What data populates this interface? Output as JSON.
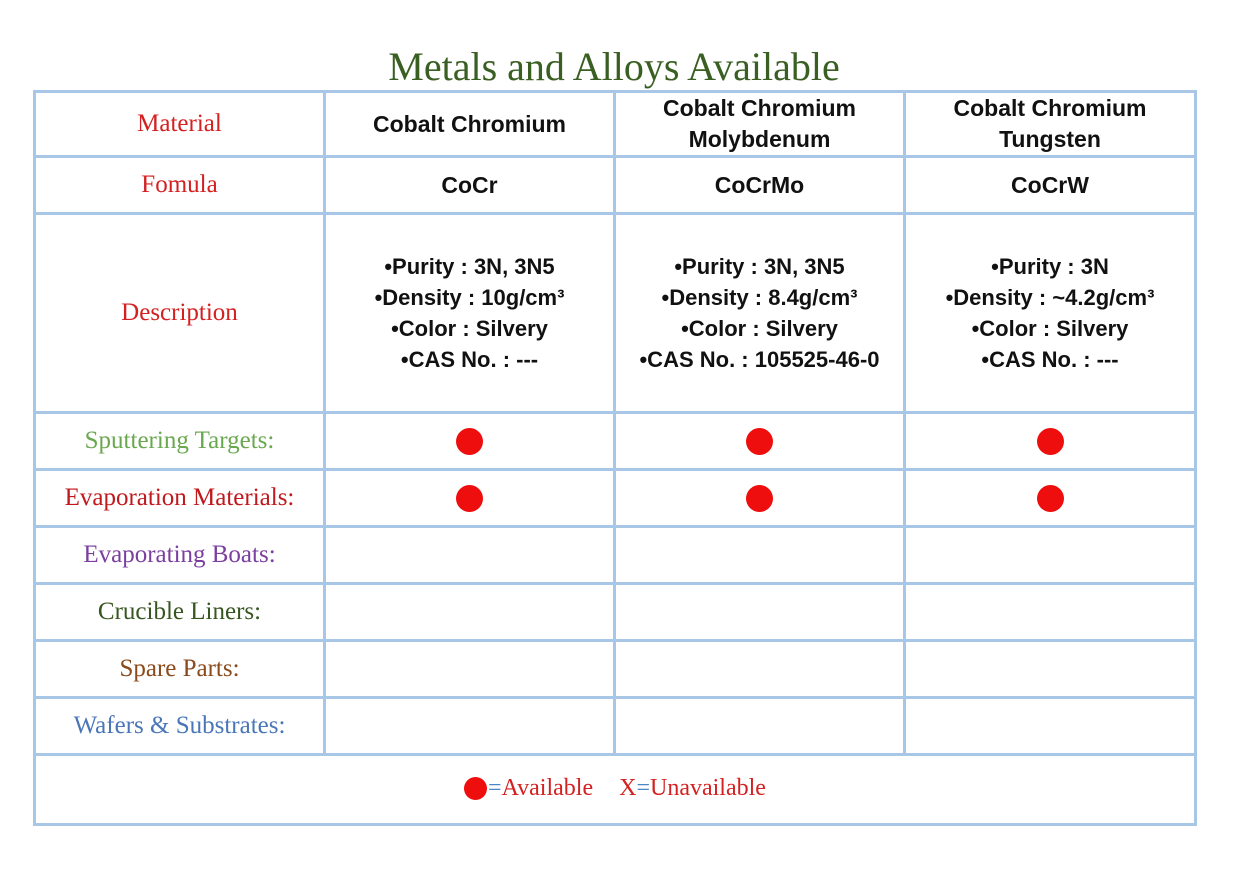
{
  "title": "Metals and Alloys Available",
  "colors": {
    "title": "#3a5f22",
    "grid_border": "#a8c6e6",
    "available_dot": "#ee0e0e",
    "label_red": "#d42020"
  },
  "row_labels": {
    "material": "Material",
    "formula": "Fomula",
    "description": "Description"
  },
  "materials": [
    {
      "name": "Cobalt Chromium",
      "formula": "CoCr",
      "description": [
        "•Purity : 3N, 3N5",
        "•Density : 10g/cm³",
        "•Color : Silvery",
        "•CAS No. : ---"
      ]
    },
    {
      "name": "Cobalt Chromium Molybdenum",
      "formula": "CoCrMo",
      "description": [
        "•Purity : 3N, 3N5",
        "•Density : 8.4g/cm³",
        "•Color : Silvery",
        "•CAS No. : 105525-46-0"
      ]
    },
    {
      "name": "Cobalt Chromium Tungsten",
      "formula": "CoCrW",
      "description": [
        "•Purity : 3N",
        "•Density : ~4.2g/cm³",
        "•Color : Silvery",
        "•CAS No. : ---"
      ]
    }
  ],
  "categories": [
    {
      "label": "Sputtering Targets:",
      "color": "#6aa84f",
      "available": [
        true,
        true,
        true
      ]
    },
    {
      "label": "Evaporation Materials:",
      "color": "#c0181c",
      "available": [
        true,
        true,
        true
      ]
    },
    {
      "label": "Evaporating Boats:",
      "color": "#7b3fa0",
      "available": [
        false,
        false,
        false
      ]
    },
    {
      "label": "Crucible Liners:",
      "color": "#38561f",
      "available": [
        false,
        false,
        false
      ]
    },
    {
      "label": "Spare Parts:",
      "color": "#8a4a1c",
      "available": [
        false,
        false,
        false
      ]
    },
    {
      "label": "Wafers & Substrates:",
      "color": "#4a76b8",
      "available": [
        false,
        false,
        false
      ]
    }
  ],
  "legend": {
    "available_eq": "=",
    "available_text": "Available",
    "unavailable_mark": "X",
    "unavailable_eq": "=",
    "unavailable_text": "Unavailable"
  }
}
